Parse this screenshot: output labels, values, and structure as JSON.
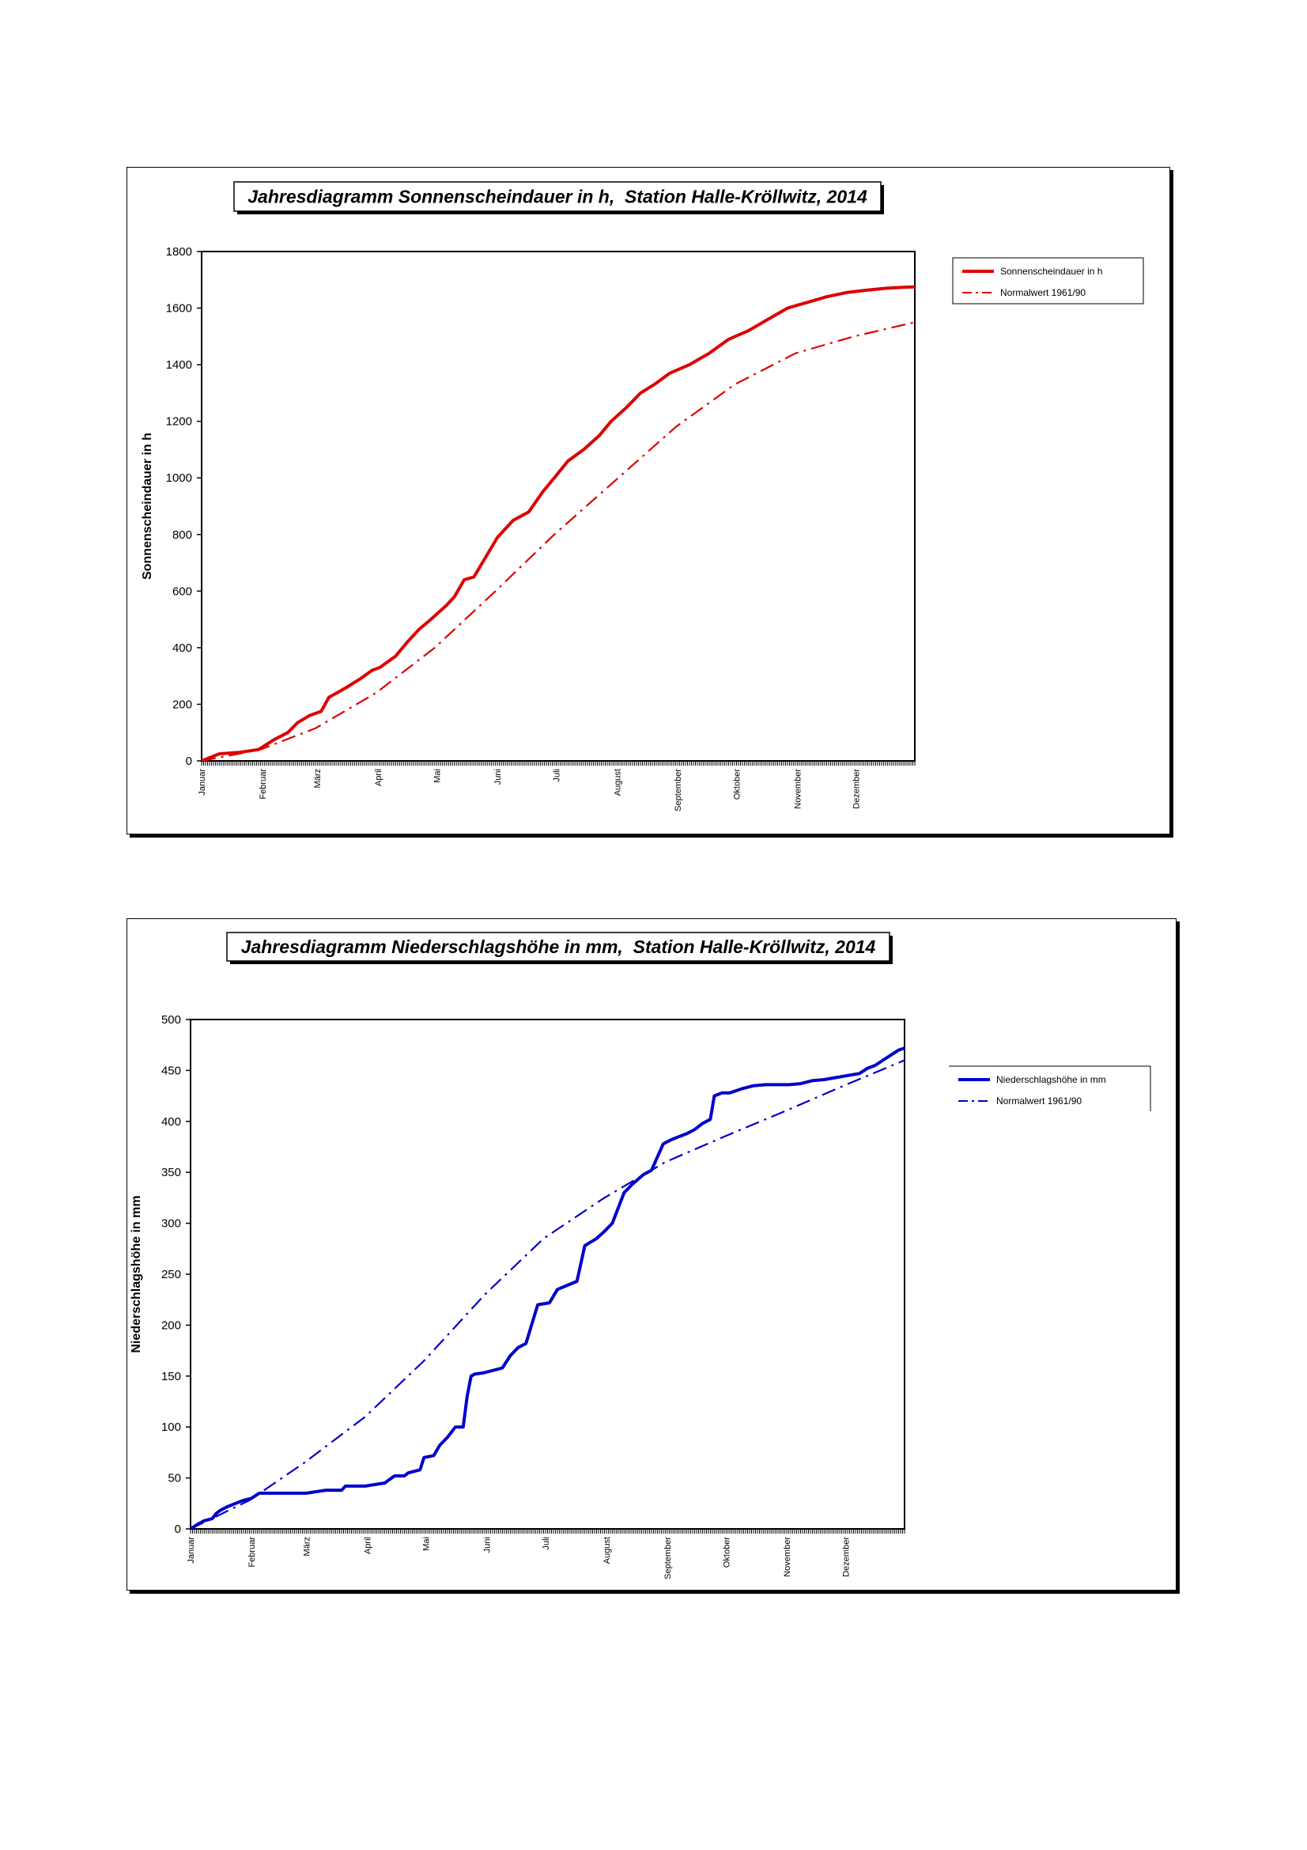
{
  "chart_data": [
    {
      "type": "line",
      "title": "Jahresdiagramm Sonnenscheindauer in h,  Station Halle-Kröllwitz, 2014",
      "xlabel": "",
      "ylabel": "Sonnenscheindauer in h",
      "x_unit": "day_of_year",
      "xlim": [
        1,
        365
      ],
      "ylim": [
        0,
        1800
      ],
      "yticks": [
        0,
        200,
        400,
        600,
        800,
        1000,
        1200,
        1400,
        1600,
        1800
      ],
      "months": [
        {
          "label": "Januar",
          "day": 1
        },
        {
          "label": "Februar",
          "day": 32
        },
        {
          "label": "März",
          "day": 60
        },
        {
          "label": "April",
          "day": 91
        },
        {
          "label": "Mai",
          "day": 121
        },
        {
          "label": "Juni",
          "day": 152
        },
        {
          "label": "Juli",
          "day": 182
        },
        {
          "label": "August",
          "day": 213
        },
        {
          "label": "September",
          "day": 244
        },
        {
          "label": "Oktober",
          "day": 274
        },
        {
          "label": "November",
          "day": 305
        },
        {
          "label": "Dezember",
          "day": 335
        }
      ],
      "legend_position": "right",
      "series": [
        {
          "name": "Sonnenscheindauer in h",
          "color": "#dd0000",
          "dash": "solid",
          "x": [
            1,
            10,
            20,
            30,
            38,
            45,
            50,
            56,
            62,
            66,
            70,
            75,
            82,
            88,
            92,
            100,
            106,
            112,
            118,
            126,
            130,
            135,
            140,
            146,
            152,
            160,
            168,
            175,
            181,
            188,
            196,
            204,
            210,
            218,
            225,
            232,
            240,
            250,
            260,
            270,
            280,
            290,
            300,
            310,
            320,
            330,
            340,
            350,
            360,
            365
          ],
          "y": [
            0,
            25,
            30,
            40,
            75,
            100,
            135,
            160,
            175,
            225,
            240,
            260,
            290,
            320,
            330,
            370,
            420,
            465,
            500,
            550,
            580,
            640,
            650,
            720,
            790,
            850,
            880,
            950,
            1000,
            1060,
            1100,
            1150,
            1200,
            1250,
            1300,
            1330,
            1370,
            1400,
            1440,
            1490,
            1520,
            1560,
            1600,
            1620,
            1640,
            1655,
            1663,
            1670,
            1674,
            1675
          ]
        },
        {
          "name": "Normalwert 1961/90",
          "color": "#dd0000",
          "dash": "dashdot",
          "x": [
            1,
            31,
            59,
            90,
            120,
            151,
            181,
            212,
            243,
            273,
            304,
            334,
            365
          ],
          "y": [
            0,
            40,
            115,
            240,
            400,
            600,
            800,
            990,
            1180,
            1330,
            1440,
            1500,
            1550
          ]
        }
      ]
    },
    {
      "type": "line",
      "title": "Jahresdiagramm Niederschlagshöhe in mm,  Station Halle-Kröllwitz, 2014",
      "xlabel": "",
      "ylabel": "Niederschlagshöhe in mm",
      "x_unit": "day_of_year",
      "xlim": [
        1,
        365
      ],
      "ylim": [
        0,
        500
      ],
      "yticks": [
        0,
        50,
        100,
        150,
        200,
        250,
        300,
        350,
        400,
        450,
        500
      ],
      "months": [
        {
          "label": "Januar",
          "day": 1
        },
        {
          "label": "Februar",
          "day": 32
        },
        {
          "label": "März",
          "day": 60
        },
        {
          "label": "April",
          "day": 91
        },
        {
          "label": "Mai",
          "day": 121
        },
        {
          "label": "Juni",
          "day": 152
        },
        {
          "label": "Juli",
          "day": 182
        },
        {
          "label": "August",
          "day": 213
        },
        {
          "label": "September",
          "day": 244
        },
        {
          "label": "Oktober",
          "day": 274
        },
        {
          "label": "November",
          "day": 305
        },
        {
          "label": "Dezember",
          "day": 335
        }
      ],
      "legend_position": "right",
      "series": [
        {
          "name": "Niederschlagshöhe in mm",
          "color": "#0000cc",
          "dash": "solid",
          "x": [
            1,
            5,
            8,
            12,
            14,
            16,
            20,
            24,
            28,
            32,
            36,
            40,
            46,
            60,
            70,
            78,
            80,
            90,
            100,
            105,
            110,
            112,
            118,
            120,
            125,
            128,
            132,
            136,
            140,
            142,
            144,
            146,
            150,
            154,
            160,
            164,
            168,
            172,
            178,
            184,
            188,
            198,
            202,
            208,
            212,
            216,
            222,
            226,
            232,
            236,
            242,
            246,
            250,
            254,
            258,
            262,
            266,
            268,
            272,
            276,
            282,
            288,
            294,
            300,
            306,
            312,
            318,
            324,
            330,
            336,
            342,
            346,
            350,
            354,
            358,
            362,
            365
          ],
          "y": [
            0,
            5,
            8,
            10,
            15,
            18,
            22,
            25,
            28,
            30,
            35,
            35,
            35,
            35,
            38,
            38,
            42,
            42,
            45,
            52,
            52,
            55,
            58,
            70,
            72,
            82,
            90,
            100,
            100,
            130,
            150,
            152,
            153,
            155,
            158,
            170,
            178,
            182,
            220,
            222,
            235,
            243,
            278,
            285,
            292,
            300,
            330,
            338,
            348,
            352,
            378,
            382,
            385,
            388,
            392,
            398,
            402,
            425,
            428,
            428,
            432,
            435,
            436,
            436,
            436,
            437,
            440,
            441,
            443,
            445,
            447,
            452,
            455,
            460,
            465,
            470,
            472
          ]
        },
        {
          "name": "Normalwert 1961/90",
          "color": "#0000cc",
          "dash": "dashdot",
          "x": [
            1,
            31,
            59,
            90,
            120,
            151,
            181,
            212,
            243,
            273,
            304,
            334,
            365
          ],
          "y": [
            0,
            28,
            65,
            110,
            165,
            230,
            285,
            325,
            360,
            385,
            410,
            435,
            460
          ]
        }
      ]
    }
  ]
}
